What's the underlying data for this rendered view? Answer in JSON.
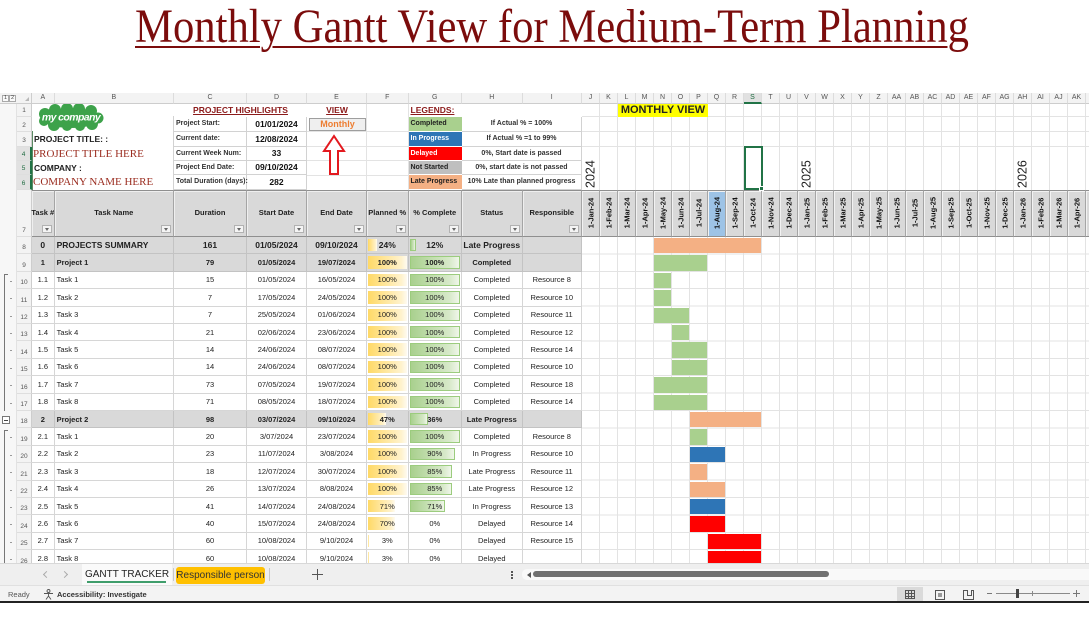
{
  "title": "Monthly Gantt View for Medium-Term Planning",
  "grid": {
    "outline_levels": [
      "1",
      "2"
    ],
    "column_letters": [
      "A",
      "B",
      "C",
      "D",
      "E",
      "F",
      "G",
      "H",
      "I",
      "J",
      "K",
      "L",
      "M",
      "N",
      "O",
      "P",
      "Q",
      "R",
      "S",
      "T",
      "U",
      "V",
      "W",
      "X",
      "Y",
      "Z",
      "AA",
      "AB",
      "AC",
      "AD",
      "AE",
      "AF",
      "AG",
      "AH",
      "AI",
      "AJ",
      "AK"
    ],
    "selected_column": "S",
    "selected_rows": [
      "4",
      "5",
      "6"
    ],
    "row_numbers": [
      "1",
      "2",
      "3",
      "4",
      "5",
      "6",
      "7",
      "8",
      "9",
      "10",
      "11",
      "12",
      "13",
      "14",
      "15",
      "16",
      "17",
      "18",
      "19",
      "20",
      "21",
      "22",
      "23",
      "24",
      "25",
      "26"
    ],
    "outline_groups": [
      {
        "from": 10,
        "to": 17
      },
      {
        "from": 19,
        "to": 26
      }
    ],
    "collapse_button_row": 18
  },
  "header": {
    "logo_text": "my company",
    "project_title_label": "PROJECT TITLE: :",
    "project_title_value": "PROJECT TITLE HERE",
    "company_label": "COMPANY :",
    "company_value": "COMPANY NAME HERE",
    "highlights": {
      "title": "PROJECT HIGHLIGHTS",
      "items": [
        {
          "label": "Project Start:",
          "value": "01/01/2024"
        },
        {
          "label": "Current date:",
          "value": "12/08/2024"
        },
        {
          "label": "Current Week Num:",
          "value": "33"
        },
        {
          "label": "Project End Date:",
          "value": "09/10/2024"
        },
        {
          "label": "Total Duration (days):",
          "value": "282"
        }
      ]
    },
    "view": {
      "title": "VIEW",
      "value": "Monthly",
      "value_color": "#ed7d31"
    },
    "legends": {
      "title": "LEGENDS:",
      "items": [
        {
          "label": "Completed",
          "description": "If Actual % = 100%",
          "color": "#a9d08e",
          "text_color": "#1f1f1f"
        },
        {
          "label": "In Progress",
          "description": "If Actual % =1 to 99%",
          "color": "#2e75b6",
          "text_color": "#ffffff"
        },
        {
          "label": "Delayed",
          "description": "0%, Start date is passed",
          "color": "#ff0000",
          "text_color": "#ffffff"
        },
        {
          "label": "Not Started",
          "description": "0%, start date is not passed",
          "color": "#bfbfbf",
          "text_color": "#1f1f1f"
        },
        {
          "label": "Late Progress",
          "description": "10% Late than planned progress",
          "color": "#f4b084",
          "text_color": "#1f1f1f"
        }
      ]
    },
    "monthly_view_label": "MONTHLY VIEW",
    "years": [
      {
        "label": "2024",
        "month_index": 0
      },
      {
        "label": "2025",
        "month_index": 12
      },
      {
        "label": "2026",
        "month_index": 24
      }
    ]
  },
  "colors": {
    "completed": "#a9d08e",
    "in_progress": "#2e75b6",
    "delayed": "#ff0000",
    "not_started": "#bfbfbf",
    "late": "#f4b084",
    "current_month": "#9dc3e6",
    "tab_highlight": "#ffc000"
  },
  "table": {
    "columns": [
      {
        "key": "task_no",
        "label": "Task #"
      },
      {
        "key": "name",
        "label": "Task Name"
      },
      {
        "key": "duration",
        "label": "Duration"
      },
      {
        "key": "start",
        "label": "Start Date"
      },
      {
        "key": "end",
        "label": "End Date"
      },
      {
        "key": "planned",
        "label": "Planned %"
      },
      {
        "key": "complete",
        "label": "% Complete"
      },
      {
        "key": "status",
        "label": "Status"
      },
      {
        "key": "responsible",
        "label": "Responsible"
      }
    ],
    "months": [
      "1-Jan-24",
      "1-Feb-24",
      "1-Mar-24",
      "1-Apr-24",
      "1-May-24",
      "1-Jun-24",
      "1-Jul-24",
      "1-Aug-24",
      "1-Sep-24",
      "1-Oct-24",
      "1-Nov-24",
      "1-Dec-24",
      "1-Jan-25",
      "1-Feb-25",
      "1-Mar-25",
      "1-Apr-25",
      "1-May-25",
      "1-Jun-25",
      "1-Jul-25",
      "1-Aug-25",
      "1-Sep-25",
      "1-Oct-25",
      "1-Nov-25",
      "1-Dec-25",
      "1-Jan-26",
      "1-Feb-26",
      "1-Mar-26",
      "1-Apr-26"
    ],
    "current_month_index": 7,
    "rows": [
      {
        "type": "summary",
        "task_no": "0",
        "name": "PROJECTS SUMMARY",
        "duration": "161",
        "start": "01/05/2024",
        "end": "09/10/2024",
        "planned": "24%",
        "planned_value": 24,
        "complete": "12%",
        "complete_value": 12,
        "status": "Late Progress",
        "responsible": "",
        "bar": {
          "start": 4,
          "span": 6,
          "status": "late"
        }
      },
      {
        "type": "project",
        "task_no": "1",
        "name": "Project 1",
        "duration": "79",
        "start": "01/05/2024",
        "end": "19/07/2024",
        "planned": "100%",
        "planned_value": 100,
        "complete": "100%",
        "complete_value": 100,
        "status": "Completed",
        "responsible": "",
        "bar": {
          "start": 4,
          "span": 3,
          "status": "completed"
        }
      },
      {
        "type": "task",
        "task_no": "1.1",
        "name": "Task 1",
        "duration": "15",
        "start": "01/05/2024",
        "end": "16/05/2024",
        "planned": "100%",
        "planned_value": 100,
        "complete": "100%",
        "complete_value": 100,
        "status": "Completed",
        "responsible": "Resource 8",
        "bar": {
          "start": 4,
          "span": 1,
          "status": "completed"
        }
      },
      {
        "type": "task",
        "task_no": "1.2",
        "name": "Task 2",
        "duration": "7",
        "start": "17/05/2024",
        "end": "24/05/2024",
        "planned": "100%",
        "planned_value": 100,
        "complete": "100%",
        "complete_value": 100,
        "status": "Completed",
        "responsible": "Resource 10",
        "bar": {
          "start": 4,
          "span": 1,
          "status": "completed"
        }
      },
      {
        "type": "task",
        "task_no": "1.3",
        "name": "Task 3",
        "duration": "7",
        "start": "25/05/2024",
        "end": "01/06/2024",
        "planned": "100%",
        "planned_value": 100,
        "complete": "100%",
        "complete_value": 100,
        "status": "Completed",
        "responsible": "Resource 11",
        "bar": {
          "start": 4,
          "span": 2,
          "status": "completed"
        }
      },
      {
        "type": "task",
        "task_no": "1.4",
        "name": "Task 4",
        "duration": "21",
        "start": "02/06/2024",
        "end": "23/06/2024",
        "planned": "100%",
        "planned_value": 100,
        "complete": "100%",
        "complete_value": 100,
        "status": "Completed",
        "responsible": "Resource 12",
        "bar": {
          "start": 5,
          "span": 1,
          "status": "completed"
        }
      },
      {
        "type": "task",
        "task_no": "1.5",
        "name": "Task 5",
        "duration": "14",
        "start": "24/06/2024",
        "end": "08/07/2024",
        "planned": "100%",
        "planned_value": 100,
        "complete": "100%",
        "complete_value": 100,
        "status": "Completed",
        "responsible": "Resource 14",
        "bar": {
          "start": 5,
          "span": 2,
          "status": "completed"
        }
      },
      {
        "type": "task",
        "task_no": "1.6",
        "name": "Task 6",
        "duration": "14",
        "start": "24/06/2024",
        "end": "08/07/2024",
        "planned": "100%",
        "planned_value": 100,
        "complete": "100%",
        "complete_value": 100,
        "status": "Completed",
        "responsible": "Resource 10",
        "bar": {
          "start": 5,
          "span": 2,
          "status": "completed"
        }
      },
      {
        "type": "task",
        "task_no": "1.7",
        "name": "Task 7",
        "duration": "73",
        "start": "07/05/2024",
        "end": "19/07/2024",
        "planned": "100%",
        "planned_value": 100,
        "complete": "100%",
        "complete_value": 100,
        "status": "Completed",
        "responsible": "Resource 18",
        "bar": {
          "start": 4,
          "span": 3,
          "status": "completed"
        }
      },
      {
        "type": "task",
        "task_no": "1.8",
        "name": "Task 8",
        "duration": "71",
        "start": "08/05/2024",
        "end": "18/07/2024",
        "planned": "100%",
        "planned_value": 100,
        "complete": "100%",
        "complete_value": 100,
        "status": "Completed",
        "responsible": "Resource 14",
        "bar": {
          "start": 4,
          "span": 3,
          "status": "completed"
        }
      },
      {
        "type": "project",
        "task_no": "2",
        "name": "Project 2",
        "duration": "98",
        "start": "03/07/2024",
        "end": "09/10/2024",
        "planned": "47%",
        "planned_value": 47,
        "complete": "36%",
        "complete_value": 36,
        "status": "Late Progress",
        "responsible": "",
        "bar": {
          "start": 6,
          "span": 4,
          "status": "late"
        }
      },
      {
        "type": "task",
        "task_no": "2.1",
        "name": "Task 1",
        "duration": "20",
        "start": "3/07/2024",
        "end": "23/07/2024",
        "planned": "100%",
        "planned_value": 100,
        "complete": "100%",
        "complete_value": 100,
        "status": "Completed",
        "responsible": "Resource 8",
        "bar": {
          "start": 6,
          "span": 1,
          "status": "completed"
        }
      },
      {
        "type": "task",
        "task_no": "2.2",
        "name": "Task 2",
        "duration": "23",
        "start": "11/07/2024",
        "end": "3/08/2024",
        "planned": "100%",
        "planned_value": 100,
        "complete": "90%",
        "complete_value": 90,
        "status": "In Progress",
        "responsible": "Resource 10",
        "bar": {
          "start": 6,
          "span": 2,
          "status": "in_progress"
        }
      },
      {
        "type": "task",
        "task_no": "2.3",
        "name": "Task 3",
        "duration": "18",
        "start": "12/07/2024",
        "end": "30/07/2024",
        "planned": "100%",
        "planned_value": 100,
        "complete": "85%",
        "complete_value": 85,
        "status": "Late Progress",
        "responsible": "Resource 11",
        "bar": {
          "start": 6,
          "span": 1,
          "status": "late"
        }
      },
      {
        "type": "task",
        "task_no": "2.4",
        "name": "Task 4",
        "duration": "26",
        "start": "13/07/2024",
        "end": "8/08/2024",
        "planned": "100%",
        "planned_value": 100,
        "complete": "85%",
        "complete_value": 85,
        "status": "Late Progress",
        "responsible": "Resource 12",
        "bar": {
          "start": 6,
          "span": 2,
          "status": "late"
        }
      },
      {
        "type": "task",
        "task_no": "2.5",
        "name": "Task 5",
        "duration": "41",
        "start": "14/07/2024",
        "end": "24/08/2024",
        "planned": "71%",
        "planned_value": 71,
        "complete": "71%",
        "complete_value": 71,
        "status": "In Progress",
        "responsible": "Resource 13",
        "bar": {
          "start": 6,
          "span": 2,
          "status": "in_progress"
        }
      },
      {
        "type": "task",
        "task_no": "2.6",
        "name": "Task 6",
        "duration": "40",
        "start": "15/07/2024",
        "end": "24/08/2024",
        "planned": "70%",
        "planned_value": 70,
        "complete": "0%",
        "complete_value": 0,
        "status": "Delayed",
        "responsible": "Resource 14",
        "bar": {
          "start": 6,
          "span": 2,
          "status": "delayed"
        }
      },
      {
        "type": "task",
        "task_no": "2.7",
        "name": "Task 7",
        "duration": "60",
        "start": "10/08/2024",
        "end": "9/10/2024",
        "planned": "3%",
        "planned_value": 3,
        "complete": "0%",
        "complete_value": 0,
        "status": "Delayed",
        "responsible": "Resource 15",
        "bar": {
          "start": 7,
          "span": 3,
          "status": "delayed"
        }
      },
      {
        "type": "task",
        "task_no": "2.8",
        "name": "Task 8",
        "duration": "60",
        "start": "10/08/2024",
        "end": "9/10/2024",
        "planned": "3%",
        "planned_value": 3,
        "complete": "0%",
        "complete_value": 0,
        "status": "Delayed",
        "responsible": "",
        "bar": {
          "start": 7,
          "span": 3,
          "status": "delayed"
        }
      }
    ]
  },
  "sheet_tabs": [
    {
      "label": "GANTT TRACKER",
      "active": true
    },
    {
      "label": "Responsible person",
      "active": false
    }
  ],
  "status_bar": {
    "ready": "Ready",
    "accessibility": "Accessibility: Investigate",
    "view_buttons": [
      "normal-view",
      "page-layout-view",
      "page-break-preview"
    ],
    "active_view": "normal-view"
  }
}
